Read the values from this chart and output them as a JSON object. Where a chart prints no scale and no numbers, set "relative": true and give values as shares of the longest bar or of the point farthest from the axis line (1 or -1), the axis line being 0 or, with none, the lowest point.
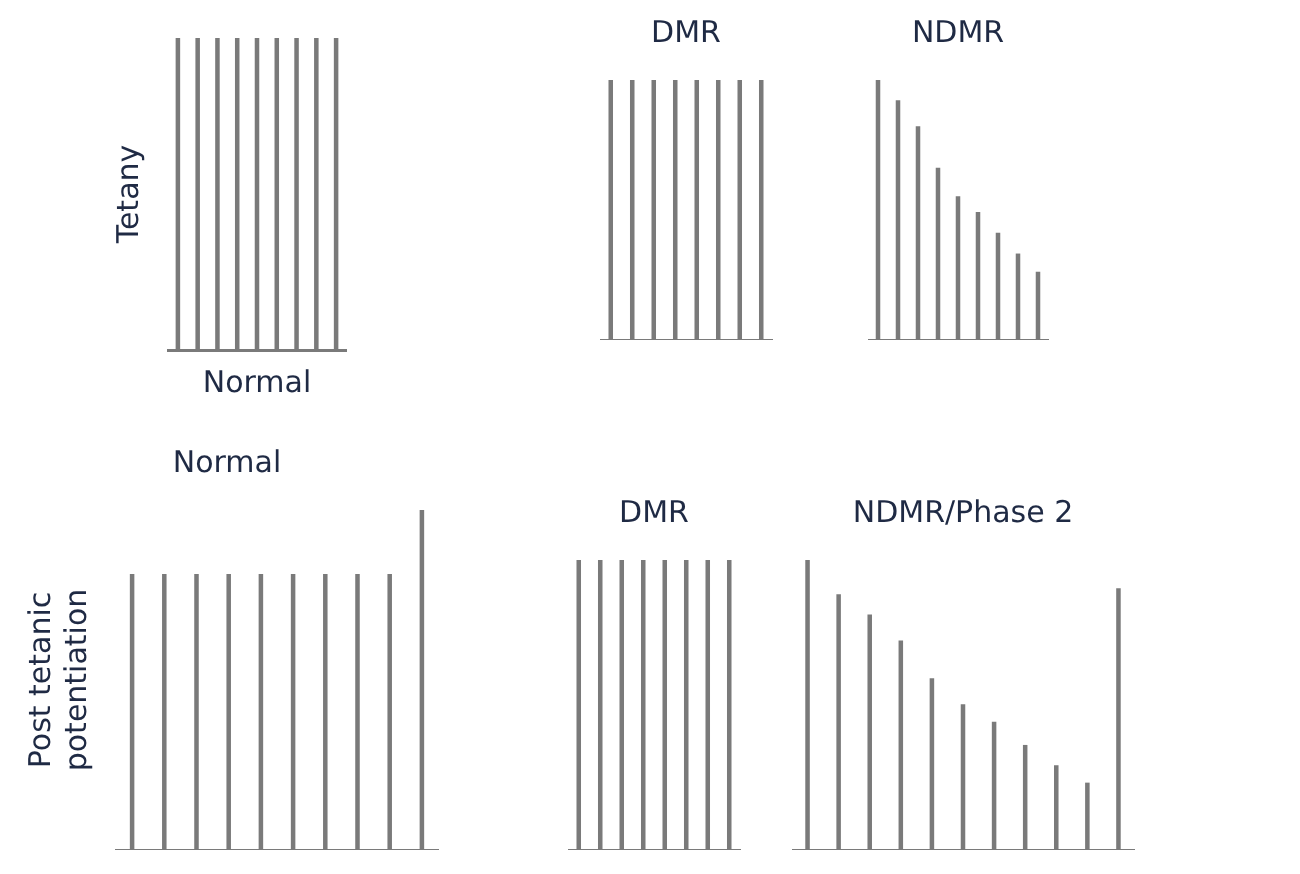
{
  "chart_data": [
    {
      "type": "bar",
      "relative": true,
      "ylabel": "Tetany",
      "xlabel": "Normal",
      "tick_labels": false,
      "color": "#7a7a7a",
      "categories": [
        null,
        null,
        null,
        null,
        null,
        null,
        null,
        null,
        null
      ],
      "values": [
        1,
        1,
        1,
        1,
        1,
        1,
        1,
        1,
        1
      ]
    },
    {
      "type": "bar",
      "relative": true,
      "title": "DMR",
      "tick_labels": false,
      "color": "#7a7a7a",
      "categories": [
        null,
        null,
        null,
        null,
        null,
        null,
        null,
        null
      ],
      "values": [
        1,
        1,
        1,
        1,
        1,
        1,
        1,
        1
      ]
    },
    {
      "type": "bar",
      "relative": true,
      "title": "NDMR",
      "tick_labels": false,
      "color": "#7a7a7a",
      "categories": [
        null,
        null,
        null,
        null,
        null,
        null,
        null,
        null,
        null
      ],
      "values": [
        1,
        0.92,
        0.82,
        0.66,
        0.55,
        0.49,
        0.41,
        0.33,
        0.26
      ]
    },
    {
      "type": "bar",
      "relative": true,
      "title": "Normal",
      "ylabel": "Post tetanic potentiation",
      "tick_labels": false,
      "color": "#7a7a7a",
      "categories": [
        null,
        null,
        null,
        null,
        null,
        null,
        null,
        null,
        null,
        null
      ],
      "values": [
        0.81,
        0.81,
        0.81,
        0.81,
        0.81,
        0.81,
        0.81,
        0.81,
        0.81,
        1
      ]
    },
    {
      "type": "bar",
      "relative": true,
      "title": "DMR",
      "tick_labels": false,
      "color": "#7a7a7a",
      "categories": [
        null,
        null,
        null,
        null,
        null,
        null,
        null,
        null
      ],
      "values": [
        1,
        1,
        1,
        1,
        1,
        1,
        1,
        1
      ]
    },
    {
      "type": "bar",
      "relative": true,
      "title": "NDMR/Phase 2",
      "tick_labels": false,
      "color": "#7a7a7a",
      "categories": [
        null,
        null,
        null,
        null,
        null,
        null,
        null,
        null,
        null,
        null,
        null
      ],
      "values": [
        1,
        0.88,
        0.81,
        0.72,
        0.59,
        0.5,
        0.44,
        0.36,
        0.29,
        0.23,
        0.9
      ]
    }
  ]
}
